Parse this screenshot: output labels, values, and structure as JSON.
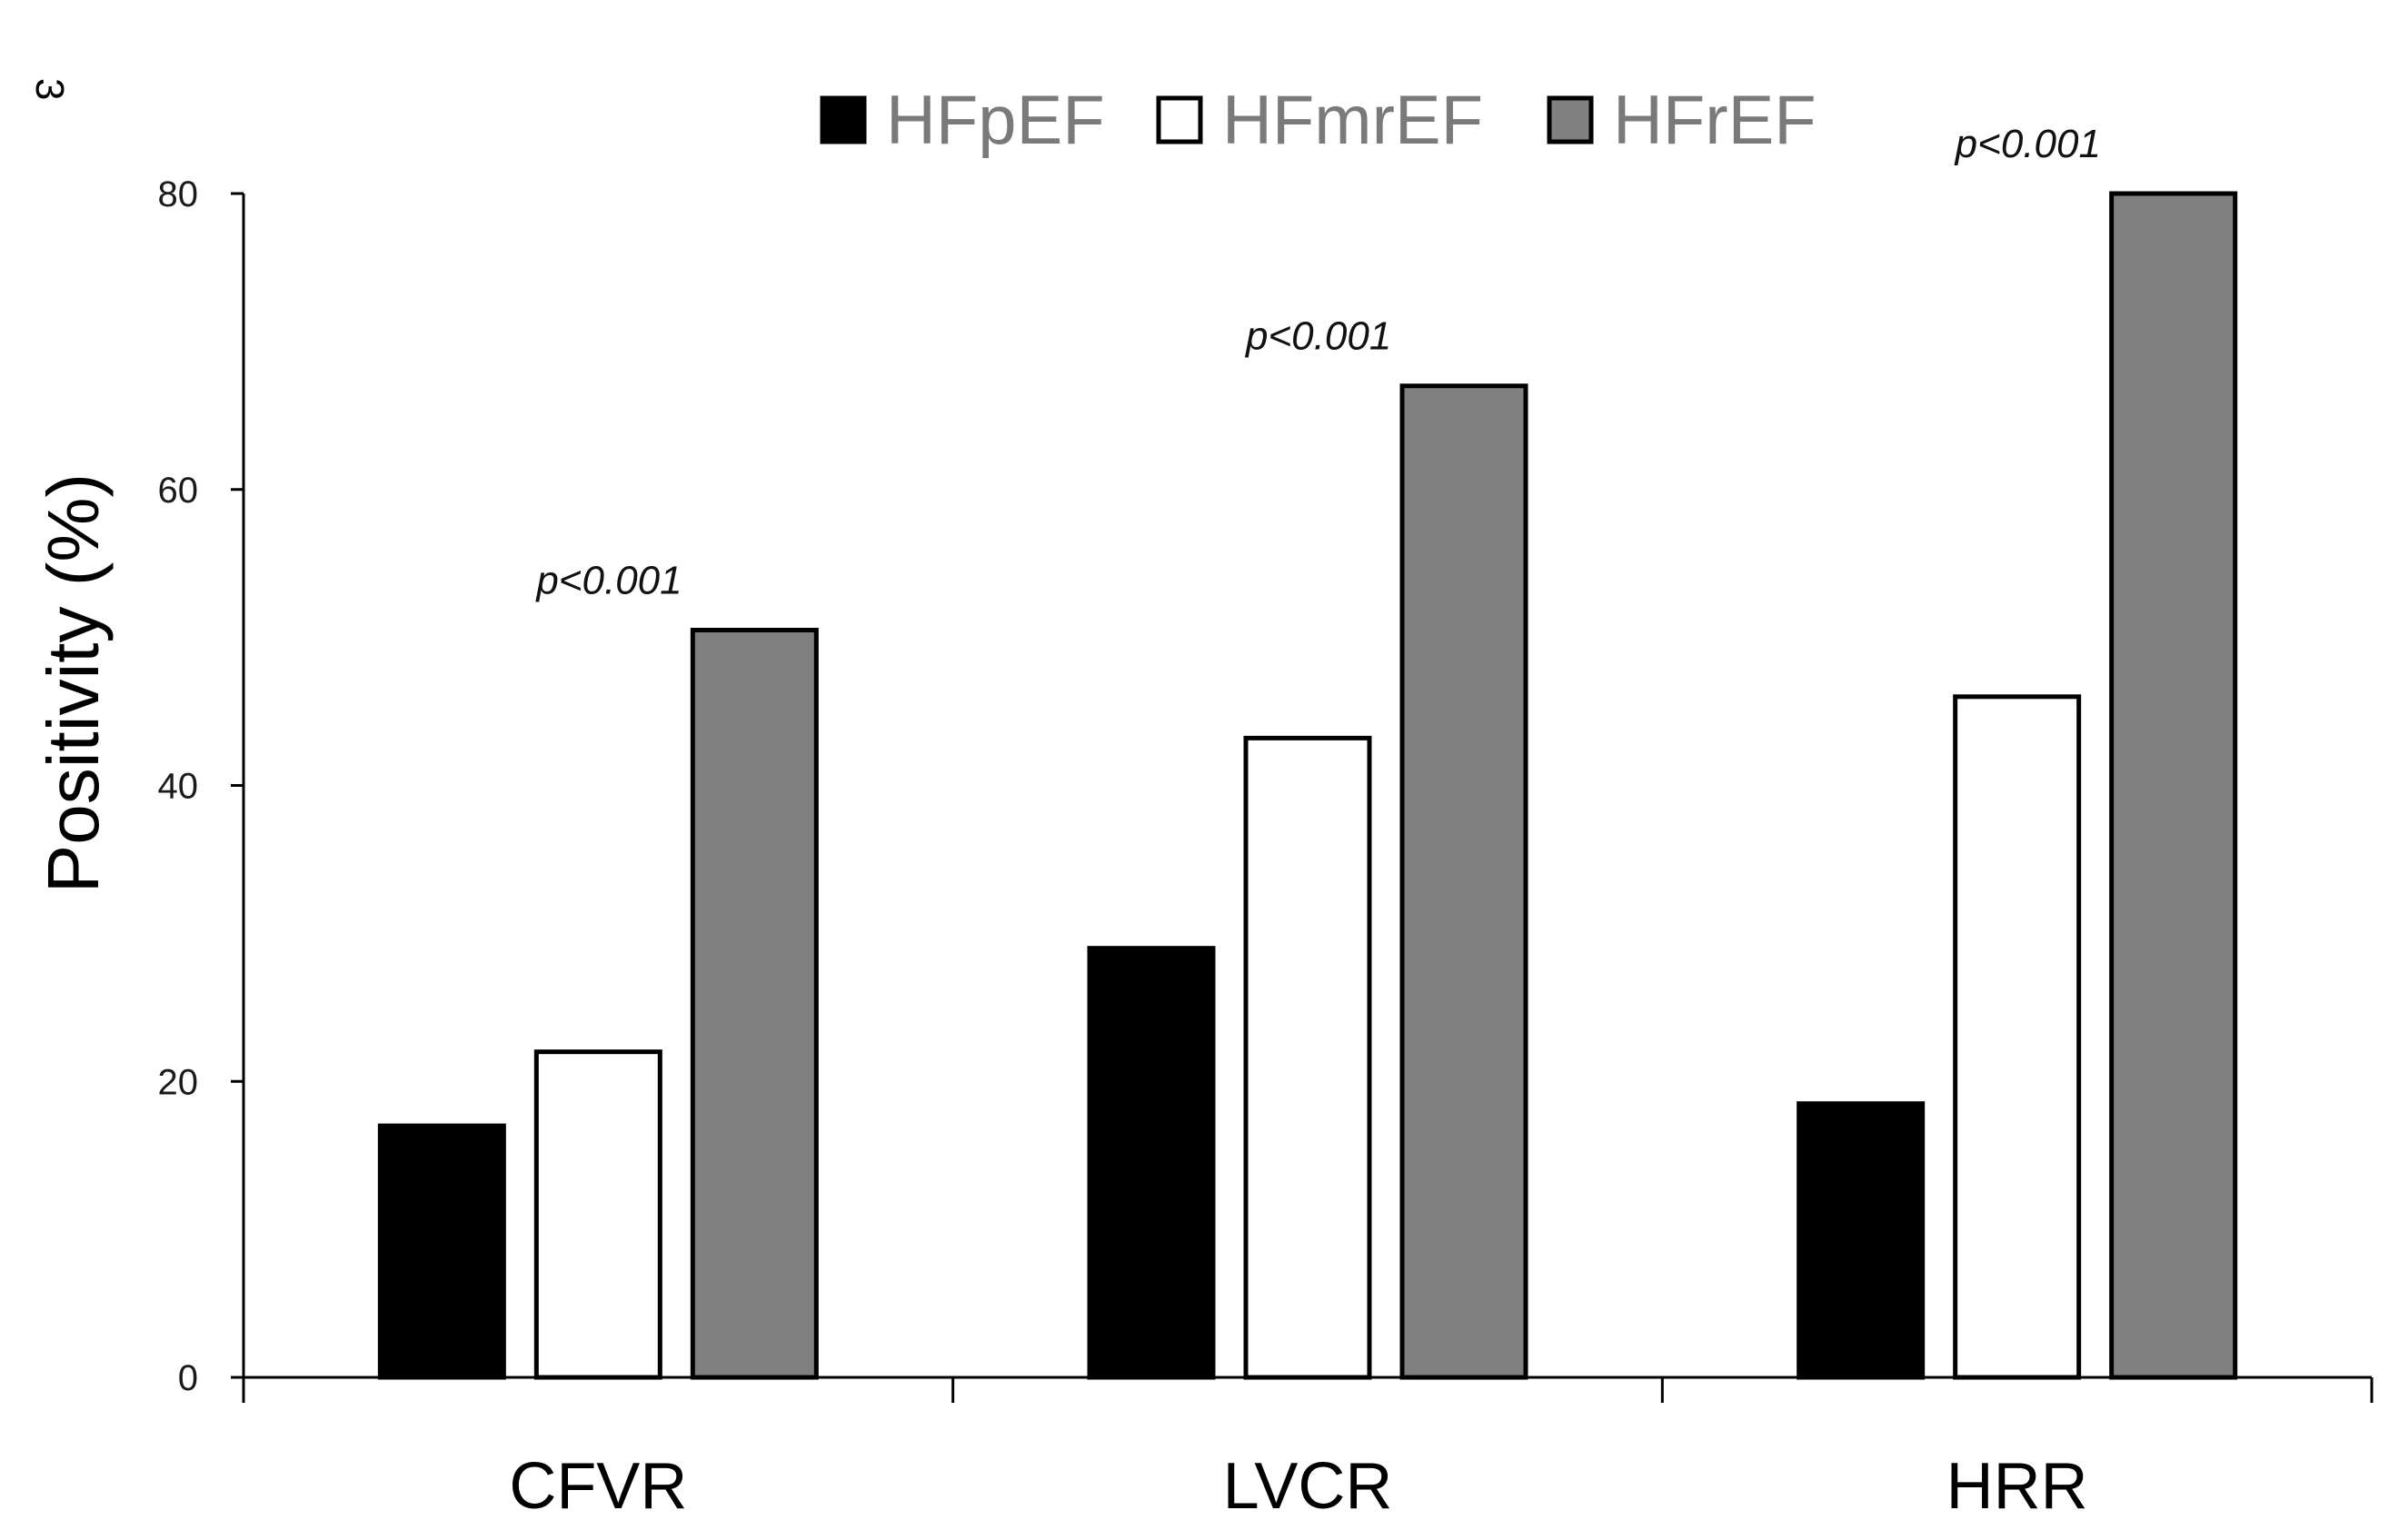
{
  "chart_data": {
    "type": "bar",
    "title": "",
    "corner_mark": "3",
    "xlabel": "",
    "ylabel": "Positivity (%)",
    "ylim": [
      0,
      80
    ],
    "yticks": [
      0,
      20,
      40,
      60,
      80
    ],
    "grid": false,
    "legend_position": "top-center",
    "categories": [
      "CFVR",
      "LVCR",
      "HRR"
    ],
    "series": [
      {
        "name": "HFpEF",
        "color": "#000000",
        "values": [
          17,
          29,
          18.5
        ]
      },
      {
        "name": "HFmrEF",
        "color": "#ffffff",
        "values": [
          22,
          43.2,
          46
        ]
      },
      {
        "name": "HFrEF",
        "color": "#808080",
        "values": [
          50.5,
          67,
          80
        ]
      }
    ],
    "annotations": [
      "p<0.001",
      "p<0.001",
      "p<0.001"
    ]
  }
}
